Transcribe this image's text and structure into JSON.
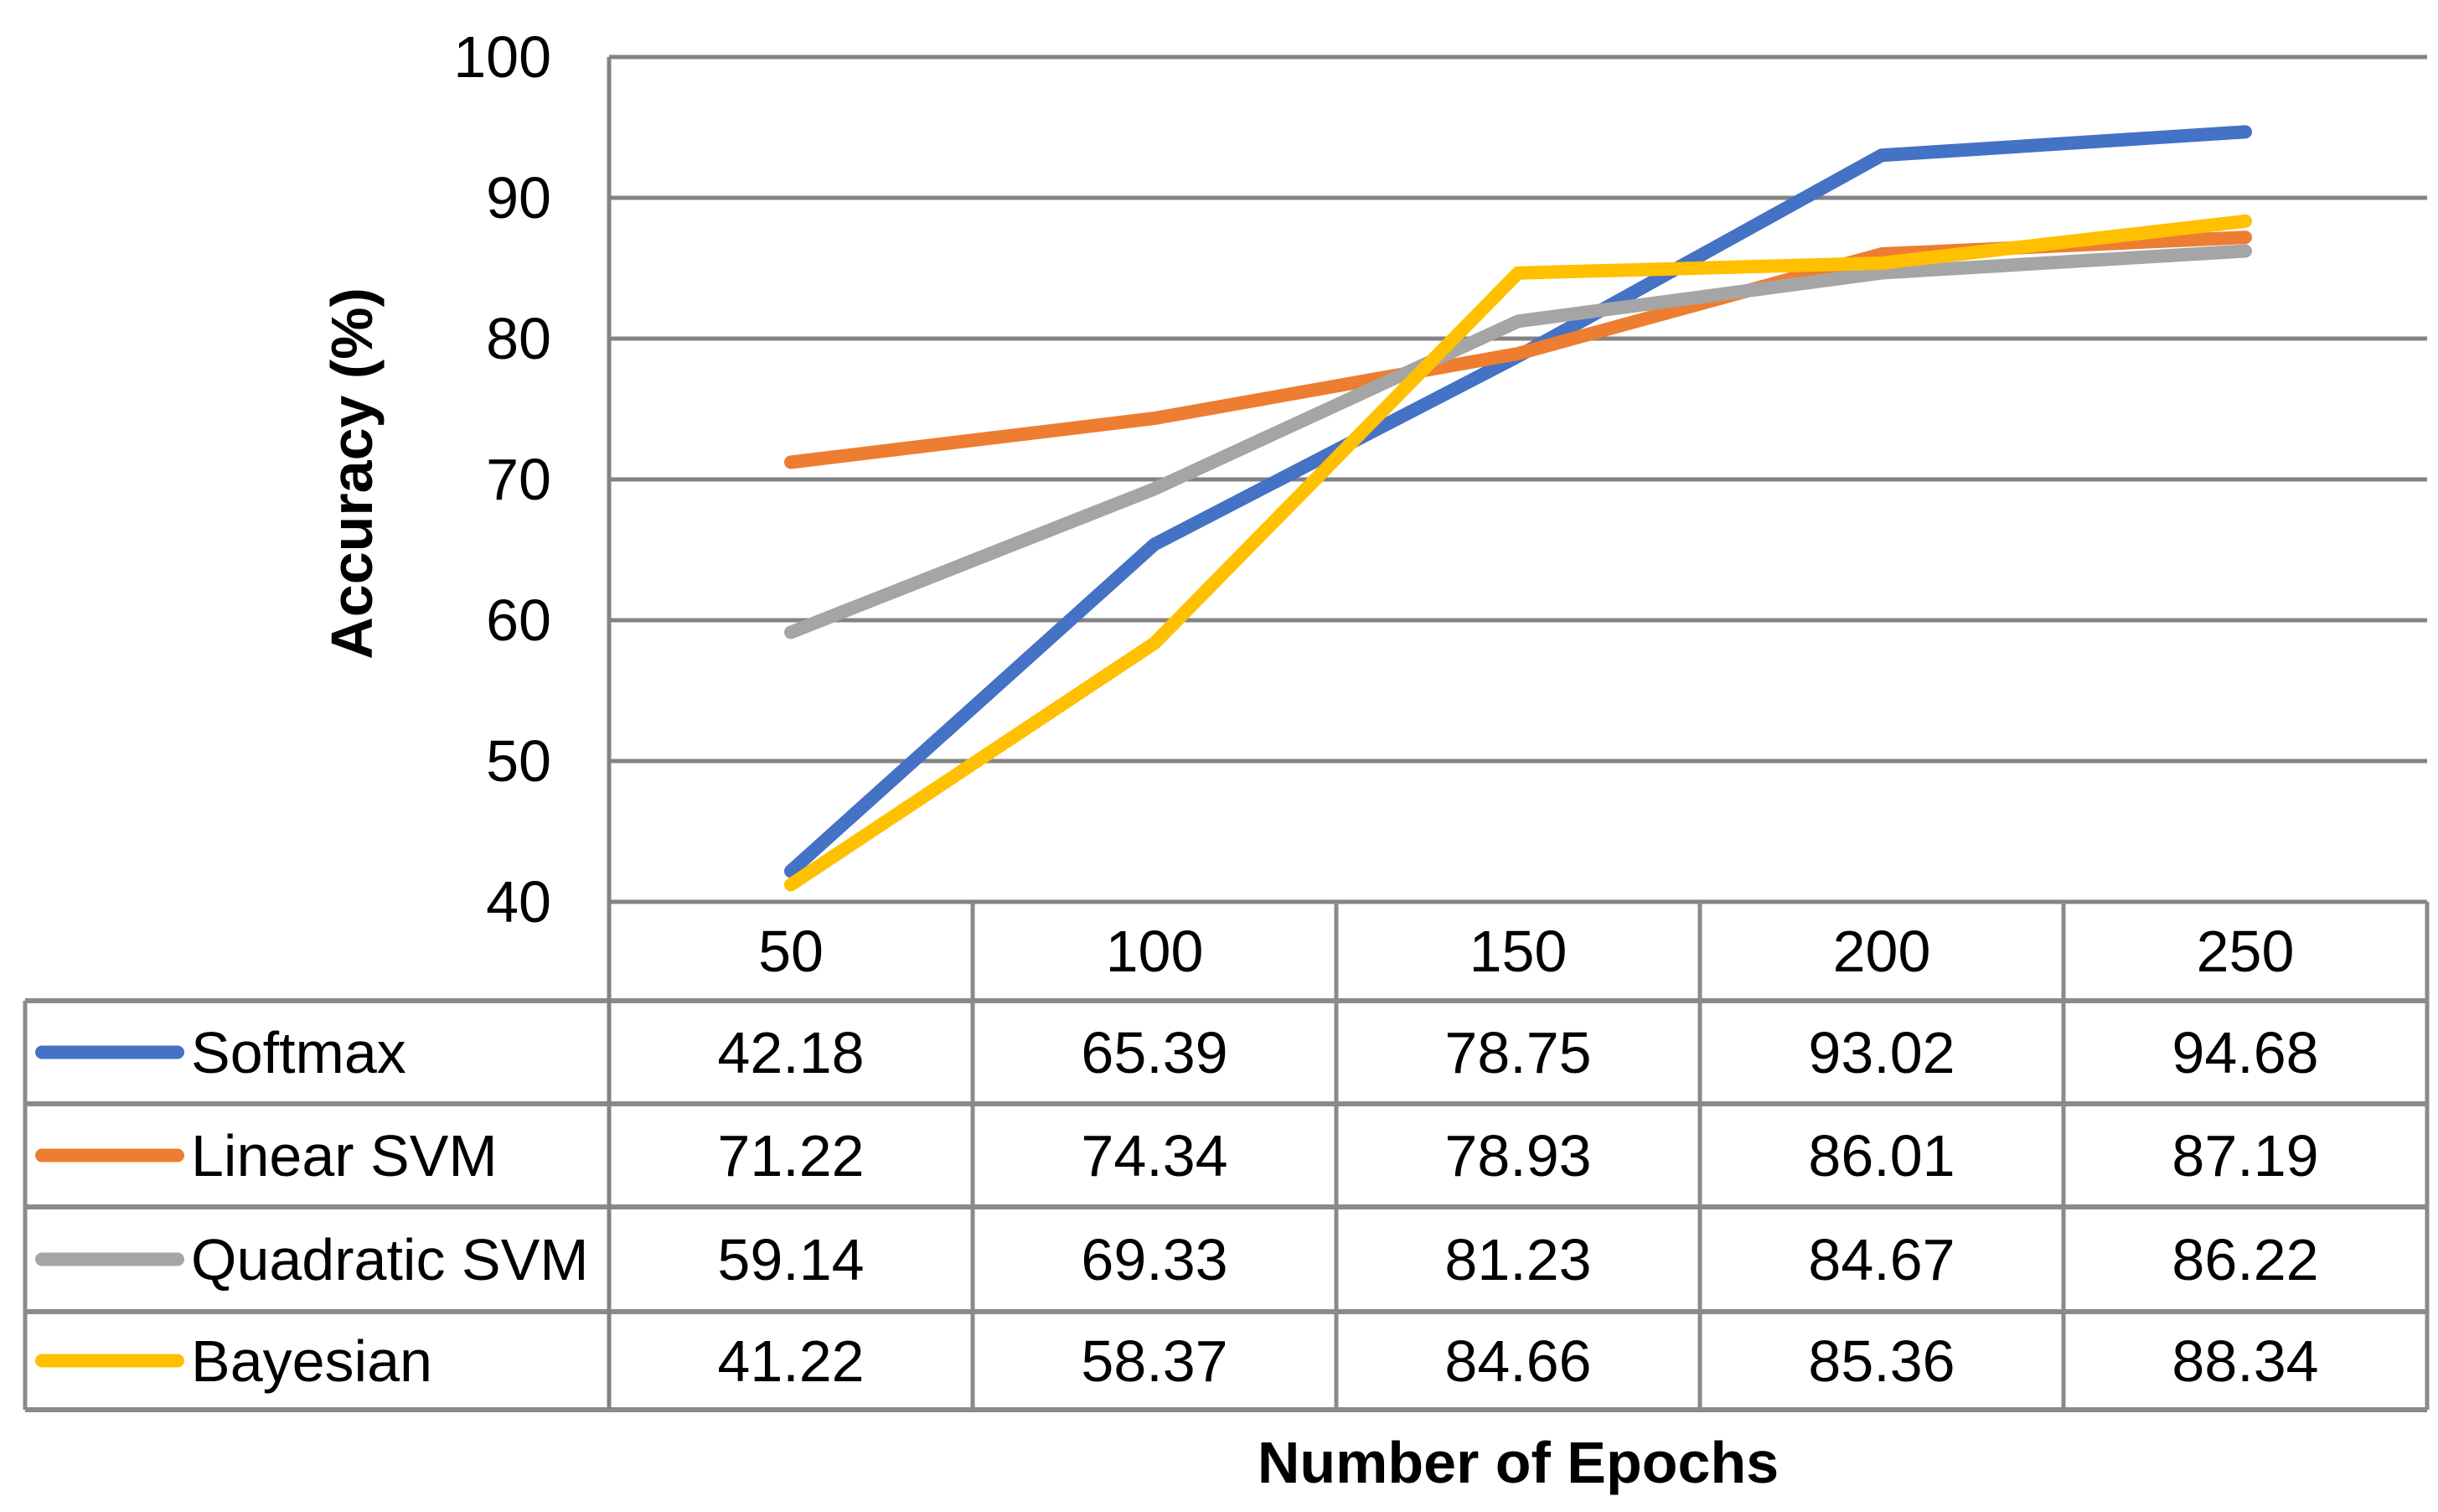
{
  "chart_data": {
    "type": "line",
    "title": "",
    "xlabel": "Number of Epochs",
    "ylabel": "Accuracy (%)",
    "x": [
      50,
      100,
      150,
      200,
      250
    ],
    "x_labels": [
      "50",
      "100",
      "150",
      "200",
      "250"
    ],
    "ylim": [
      40,
      100
    ],
    "ytick_step": 10,
    "y_ticks": [
      100,
      90,
      80,
      70,
      60,
      50,
      40
    ],
    "grid": "horizontal",
    "legend_position": "table-left",
    "series": [
      {
        "name": "Softmax",
        "color": "#4472C4",
        "values": [
          42.18,
          65.39,
          78.75,
          93.02,
          94.68
        ]
      },
      {
        "name": "Linear SVM",
        "color": "#ED7D31",
        "values": [
          71.22,
          74.34,
          78.93,
          86.01,
          87.19
        ]
      },
      {
        "name": "Quadratic SVM",
        "color": "#A5A5A5",
        "values": [
          59.14,
          69.33,
          81.23,
          84.67,
          86.22
        ]
      },
      {
        "name": "Bayesian",
        "color": "#FFC000",
        "values": [
          41.22,
          58.37,
          84.66,
          85.36,
          88.34
        ]
      }
    ]
  },
  "colors": {
    "gridline": "#838383",
    "table_border": "#8A8A8A",
    "text": "#000000",
    "background": "#FFFFFF"
  }
}
